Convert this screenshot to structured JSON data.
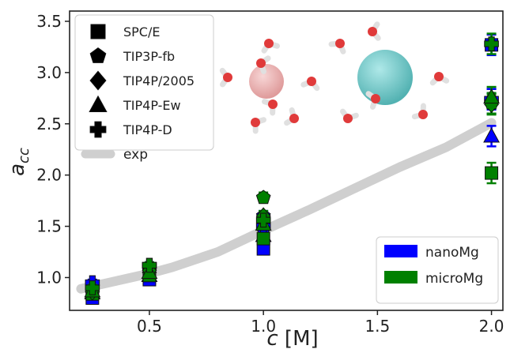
{
  "chart_data": {
    "type": "scatter",
    "xlabel": "c [M]",
    "ylabel": "a_cc",
    "xlim": [
      0.15,
      2.05
    ],
    "ylim": [
      0.68,
      3.6
    ],
    "xticks": [
      0.5,
      1.0,
      1.5,
      2.0
    ],
    "xtick_labels": [
      "0.5",
      "1.0",
      "1.5",
      "2.0"
    ],
    "yticks": [
      1.0,
      1.5,
      2.0,
      2.5,
      3.0,
      3.5
    ],
    "ytick_labels": [
      "1.0",
      "1.5",
      "2.0",
      "2.5",
      "3.0",
      "3.5"
    ],
    "grid": false,
    "x": [
      0.25,
      0.5,
      1.0,
      2.0
    ],
    "exp": {
      "name": "exp",
      "x": [
        0.2,
        0.3,
        0.4,
        0.5,
        0.6,
        0.8,
        1.0,
        1.2,
        1.4,
        1.6,
        1.8,
        2.0
      ],
      "values": [
        0.89,
        0.94,
        0.99,
        1.04,
        1.1,
        1.25,
        1.46,
        1.66,
        1.87,
        2.08,
        2.27,
        2.51
      ]
    },
    "models": [
      {
        "name": "SPC/E",
        "marker": "square"
      },
      {
        "name": "TIP3P-fb",
        "marker": "pentagon"
      },
      {
        "name": "TIP4P/2005",
        "marker": "diamond"
      },
      {
        "name": "TIP4P-Ew",
        "marker": "triangle"
      },
      {
        "name": "TIP4P-D",
        "marker": "plus"
      }
    ],
    "series": [
      {
        "name": "nanoMg",
        "color": "#0000ff",
        "points": [
          {
            "model": "SPC/E",
            "values": [
              0.8,
              0.98,
              1.28,
              3.27
            ],
            "errors": [
              0.03,
              0.03,
              0.05,
              0.1
            ]
          },
          {
            "model": "TIP3P-fb",
            "values": [
              0.87,
              1.06,
              1.6,
              2.7
            ],
            "errors": [
              0.03,
              0.03,
              0.05,
              0.1
            ]
          },
          {
            "model": "TIP4P/2005",
            "values": [
              0.86,
              1.05,
              1.47,
              2.74
            ],
            "errors": [
              0.03,
              0.03,
              0.05,
              0.1
            ]
          },
          {
            "model": "TIP4P-Ew",
            "values": [
              0.85,
              1.02,
              1.41,
              2.38
            ],
            "errors": [
              0.03,
              0.03,
              0.05,
              0.1
            ]
          },
          {
            "model": "TIP4P-D",
            "values": [
              0.95,
              1.12,
              1.5,
              2.74
            ],
            "errors": [
              0.03,
              0.03,
              0.05,
              0.1
            ]
          }
        ]
      },
      {
        "name": "microMg",
        "color": "#008000",
        "points": [
          {
            "model": "SPC/E",
            "values": [
              0.84,
              1.02,
              1.38,
              2.02
            ],
            "errors": [
              0.03,
              0.03,
              0.05,
              0.1
            ]
          },
          {
            "model": "TIP3P-fb",
            "values": [
              0.88,
              1.1,
              1.78,
              2.7
            ],
            "errors": [
              0.03,
              0.03,
              0.05,
              0.1
            ]
          },
          {
            "model": "TIP4P/2005",
            "values": [
              0.86,
              1.07,
              1.6,
              2.69
            ],
            "errors": [
              0.03,
              0.03,
              0.05,
              0.1
            ]
          },
          {
            "model": "TIP4P-Ew",
            "values": [
              0.87,
              1.05,
              1.52,
              2.76
            ],
            "errors": [
              0.03,
              0.03,
              0.05,
              0.1
            ]
          },
          {
            "model": "TIP4P-D",
            "values": [
              0.9,
              1.12,
              1.56,
              3.28
            ],
            "errors": [
              0.03,
              0.03,
              0.05,
              0.1
            ]
          }
        ]
      }
    ],
    "legend_models_position": "top-left",
    "legend_sets_position": "bottom-right"
  },
  "colors": {
    "exp": "#cfcfcf",
    "marker_fill": "#000000",
    "ion_left": "#e8a5a5",
    "ion_right": "#6cc9c9",
    "oxygen": "#e03a3a",
    "hydrogen": "#f2f2f2"
  },
  "inset": {
    "icon": "water-ion-cluster-illustration"
  }
}
